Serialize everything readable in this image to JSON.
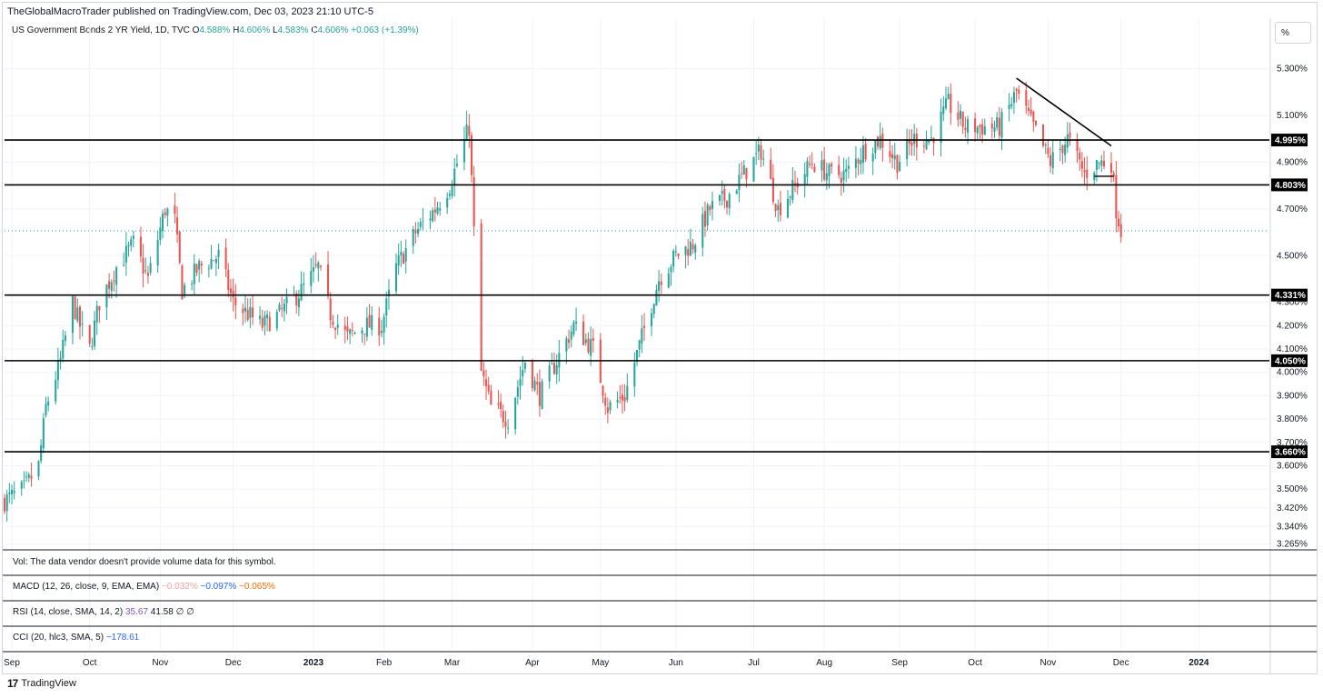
{
  "header": {
    "publisher": "TheGlobalMacroTrader published on TradingView.com, Dec 03, 2023 21:10 UTC-5",
    "symbol": "US Government Bonds 2 YR Yield, 1D, TVC",
    "o_label": "O",
    "o_value": "4.588%",
    "h_label": "H",
    "h_value": "4.606%",
    "l_label": "L",
    "l_value": "4.583%",
    "c_label": "C",
    "c_value": "4.606%",
    "change": "+0.063 (+1.39%)"
  },
  "scale_button": "%",
  "panes": {
    "vol": "Vol: The data vendor doesn't provide volume data for this symbol.",
    "macd_label": "MACD (12, 26, close, 9, EMA, EMA)",
    "macd_v1": "−0.032%",
    "macd_v2": "−0.097%",
    "macd_v3": "−0.065%",
    "rsi_label": "RSI (14, close, SMA, 14, 2)",
    "rsi_v1": "35.67",
    "rsi_v2": "41.58",
    "rsi_v3": "∅",
    "rsi_v4": "∅",
    "cci_label": "CCI (20, hlc3, SMA, 5)",
    "cci_v1": "−178.61"
  },
  "footer": {
    "logo": "17",
    "brand": "TradingView"
  },
  "colors": {
    "up": "#26a69a",
    "down": "#ef5350",
    "grid": "#f0f3fa",
    "line": "#000000"
  },
  "chart_data": {
    "type": "candlestick",
    "title": "US Government Bonds 2 YR Yield",
    "interval": "1D",
    "y_unit": "%",
    "ylim": [
      3.24,
      5.4
    ],
    "x_range": [
      "2022-08-29",
      "2024-01-31"
    ],
    "y_ticks": [
      "5.300%",
      "5.100%",
      "4.900%",
      "4.700%",
      "4.500%",
      "4.300%",
      "4.200%",
      "4.100%",
      "4.000%",
      "3.900%",
      "3.800%",
      "3.700%",
      "3.600%",
      "3.500%",
      "3.420%",
      "3.340%",
      "3.265%"
    ],
    "x_ticks": [
      {
        "label": "Sep",
        "date": "2022-09-01",
        "bold": false
      },
      {
        "label": "Oct",
        "date": "2022-10-03",
        "bold": false
      },
      {
        "label": "Nov",
        "date": "2022-11-01",
        "bold": false
      },
      {
        "label": "Dec",
        "date": "2022-12-01",
        "bold": false
      },
      {
        "label": "2023",
        "date": "2023-01-03",
        "bold": true
      },
      {
        "label": "Feb",
        "date": "2023-02-01",
        "bold": false
      },
      {
        "label": "Mar",
        "date": "2023-03-01",
        "bold": false
      },
      {
        "label": "Apr",
        "date": "2023-04-03",
        "bold": false
      },
      {
        "label": "May",
        "date": "2023-05-01",
        "bold": false
      },
      {
        "label": "Jun",
        "date": "2023-06-01",
        "bold": false
      },
      {
        "label": "Jul",
        "date": "2023-07-03",
        "bold": false
      },
      {
        "label": "Aug",
        "date": "2023-08-01",
        "bold": false
      },
      {
        "label": "Sep",
        "date": "2023-09-01",
        "bold": false
      },
      {
        "label": "Oct",
        "date": "2023-10-02",
        "bold": false
      },
      {
        "label": "Nov",
        "date": "2023-11-01",
        "bold": false
      },
      {
        "label": "Dec",
        "date": "2023-12-01",
        "bold": false
      },
      {
        "label": "2024",
        "date": "2024-01-02",
        "bold": true
      }
    ],
    "horizontal_levels": [
      {
        "value": 4.995,
        "label": "4.995%"
      },
      {
        "value": 4.803,
        "label": "4.803%"
      },
      {
        "value": 4.331,
        "label": "4.331%"
      },
      {
        "value": 4.05,
        "label": "4.050%"
      },
      {
        "value": 3.66,
        "label": "3.660%"
      }
    ],
    "current_price_line": 4.606,
    "trendline": {
      "start": {
        "date": "2023-10-19",
        "value": 5.26
      },
      "end": {
        "date": "2023-11-27",
        "value": 4.97
      }
    },
    "minor_segment": {
      "start": {
        "date": "2023-11-20",
        "value": 4.84
      },
      "end": {
        "date": "2023-11-28",
        "value": 4.84
      }
    },
    "close_path": [
      [
        "2022-08-29",
        3.45
      ],
      [
        "2022-09-06",
        3.5
      ],
      [
        "2022-09-12",
        3.6
      ],
      [
        "2022-09-15",
        3.85
      ],
      [
        "2022-09-21",
        4.05
      ],
      [
        "2022-09-26",
        4.3
      ],
      [
        "2022-09-29",
        4.2
      ],
      [
        "2022-10-03",
        4.1
      ],
      [
        "2022-10-07",
        4.3
      ],
      [
        "2022-10-14",
        4.45
      ],
      [
        "2022-10-21",
        4.55
      ],
      [
        "2022-10-27",
        4.4
      ],
      [
        "2022-11-03",
        4.7
      ],
      [
        "2022-11-07",
        4.65
      ],
      [
        "2022-11-10",
        4.35
      ],
      [
        "2022-11-17",
        4.45
      ],
      [
        "2022-11-25",
        4.5
      ],
      [
        "2022-12-01",
        4.3
      ],
      [
        "2022-12-07",
        4.25
      ],
      [
        "2022-12-13",
        4.2
      ],
      [
        "2022-12-20",
        4.25
      ],
      [
        "2022-12-29",
        4.35
      ],
      [
        "2023-01-05",
        4.45
      ],
      [
        "2023-01-10",
        4.25
      ],
      [
        "2023-01-17",
        4.15
      ],
      [
        "2023-01-24",
        4.2
      ],
      [
        "2023-01-31",
        4.2
      ],
      [
        "2023-02-06",
        4.45
      ],
      [
        "2023-02-14",
        4.6
      ],
      [
        "2023-02-22",
        4.7
      ],
      [
        "2023-02-28",
        4.8
      ],
      [
        "2023-03-08",
        5.05
      ],
      [
        "2023-03-10",
        4.6
      ],
      [
        "2023-03-13",
        4.0
      ],
      [
        "2023-03-17",
        3.85
      ],
      [
        "2023-03-24",
        3.8
      ],
      [
        "2023-03-31",
        4.05
      ],
      [
        "2023-04-06",
        3.9
      ],
      [
        "2023-04-13",
        4.05
      ],
      [
        "2023-04-20",
        4.2
      ],
      [
        "2023-04-28",
        4.1
      ],
      [
        "2023-05-04",
        3.85
      ],
      [
        "2023-05-11",
        3.9
      ],
      [
        "2023-05-18",
        4.15
      ],
      [
        "2023-05-25",
        4.4
      ],
      [
        "2023-06-01",
        4.5
      ],
      [
        "2023-06-08",
        4.55
      ],
      [
        "2023-06-15",
        4.7
      ],
      [
        "2023-06-22",
        4.75
      ],
      [
        "2023-06-29",
        4.85
      ],
      [
        "2023-07-06",
        4.95
      ],
      [
        "2023-07-13",
        4.7
      ],
      [
        "2023-07-20",
        4.8
      ],
      [
        "2023-07-27",
        4.9
      ],
      [
        "2023-08-03",
        4.85
      ],
      [
        "2023-08-10",
        4.85
      ],
      [
        "2023-08-17",
        4.95
      ],
      [
        "2023-08-24",
        5.0
      ],
      [
        "2023-08-31",
        4.9
      ],
      [
        "2023-09-07",
        5.0
      ],
      [
        "2023-09-14",
        5.0
      ],
      [
        "2023-09-21",
        5.15
      ],
      [
        "2023-09-28",
        5.05
      ],
      [
        "2023-10-05",
        5.05
      ],
      [
        "2023-10-12",
        5.05
      ],
      [
        "2023-10-19",
        5.2
      ],
      [
        "2023-10-26",
        5.05
      ],
      [
        "2023-11-02",
        4.9
      ],
      [
        "2023-11-09",
        5.0
      ],
      [
        "2023-11-16",
        4.85
      ],
      [
        "2023-11-22",
        4.9
      ],
      [
        "2023-11-27",
        4.9
      ],
      [
        "2023-11-29",
        4.7
      ],
      [
        "2023-12-01",
        4.606
      ]
    ]
  }
}
